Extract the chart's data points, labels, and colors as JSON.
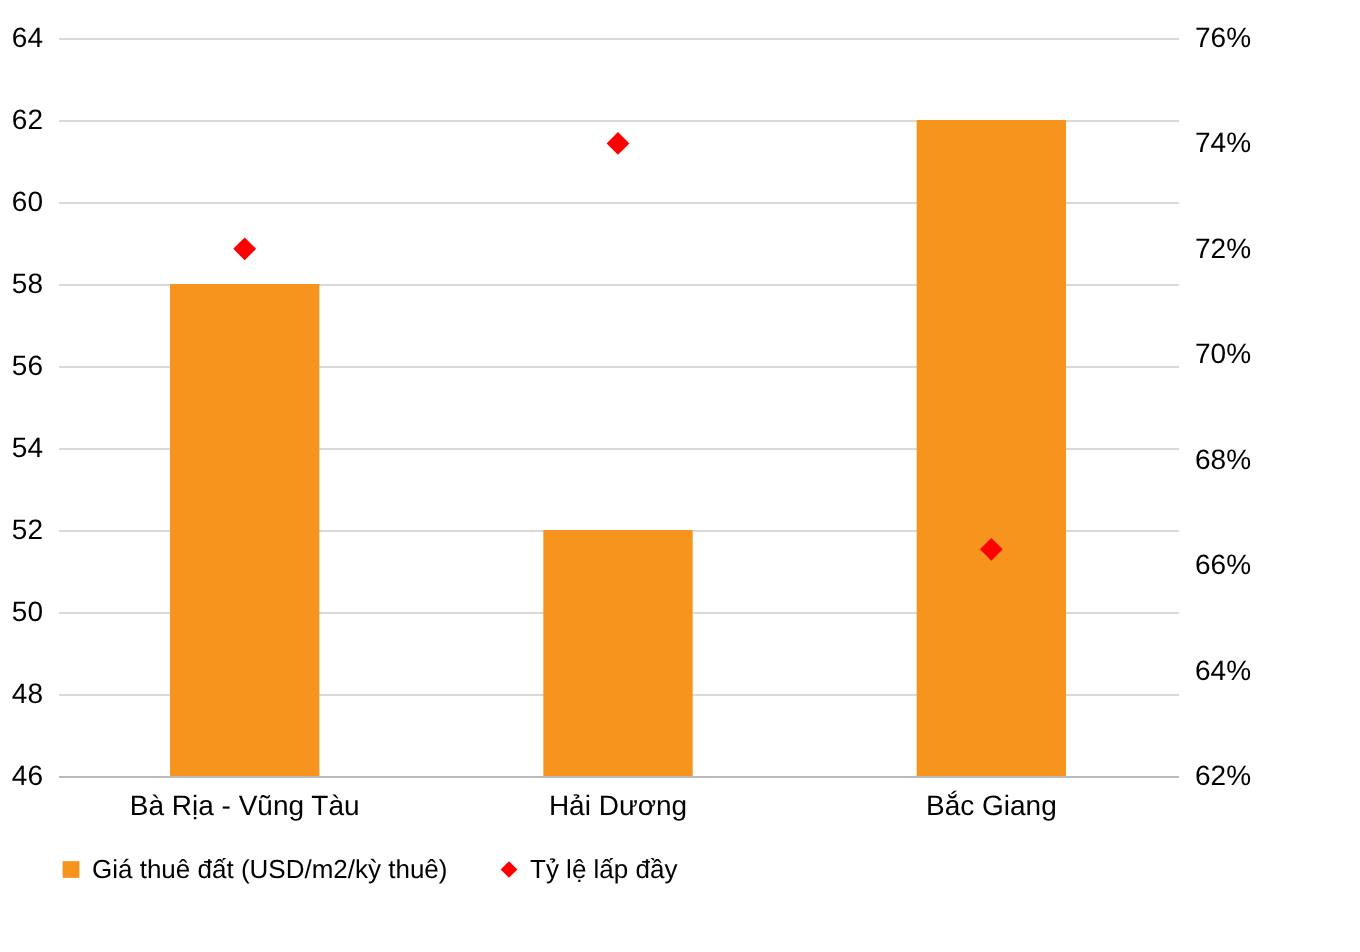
{
  "chart_data": {
    "type": "bar",
    "categories": [
      "Bà Rịa - Vũng Tàu",
      "Hải Dương",
      "Bắc Giang"
    ],
    "series": [
      {
        "name": "Giá thuê đất (USD/m2/kỳ  thuê)",
        "color": "#f7941d",
        "values": [
          58,
          52,
          62
        ]
      },
      {
        "name": "Tỷ lệ lấp đầy",
        "type": "scatter",
        "axis": "y2",
        "color": "#ff0000",
        "marker": "diamond",
        "values": [
          72,
          74,
          66.3
        ]
      }
    ],
    "ylim": [
      46,
      64
    ],
    "yticks": [
      46,
      48,
      50,
      52,
      54,
      56,
      58,
      60,
      62,
      64
    ],
    "y2lim": [
      62,
      76
    ],
    "y2ticks": [
      {
        "value": 62,
        "label": "62%"
      },
      {
        "value": 64,
        "label": "64%"
      },
      {
        "value": 66,
        "label": "66%"
      },
      {
        "value": 68,
        "label": "68%"
      },
      {
        "value": 70,
        "label": "70%"
      },
      {
        "value": 72,
        "label": "72%"
      },
      {
        "value": 74,
        "label": "74%"
      },
      {
        "value": 76,
        "label": "76%"
      }
    ],
    "grid": "y",
    "legend": "bottom"
  }
}
